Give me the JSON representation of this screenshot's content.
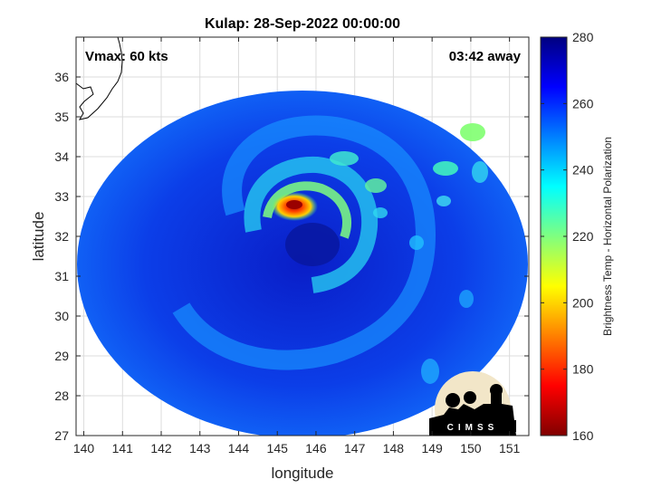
{
  "chart_data": {
    "type": "heatmap",
    "title": "Kulap: 28-Sep-2022 00:00:00",
    "xlabel": "longitude",
    "ylabel": "latitude",
    "xlim": [
      139.8,
      151.5
    ],
    "ylim": [
      27,
      37
    ],
    "x_ticks": [
      140,
      141,
      142,
      143,
      144,
      145,
      146,
      147,
      148,
      149,
      150,
      151
    ],
    "y_ticks": [
      27,
      28,
      29,
      30,
      31,
      32,
      33,
      34,
      35,
      36
    ],
    "grid": true,
    "annotations": {
      "vmax": "Vmax: 60 kts",
      "time_away": "03:42 away"
    },
    "swath_center": [
      145.7,
      31.9
    ],
    "storm_center": [
      145.7,
      31.8
    ],
    "colorbar": {
      "label": "Brightness Temp - Horizontal Polarization",
      "min": 160,
      "max": 280,
      "ticks": [
        160,
        180,
        200,
        220,
        240,
        260,
        280
      ],
      "colormap": "jet"
    },
    "logo_text": "CIMSS"
  }
}
